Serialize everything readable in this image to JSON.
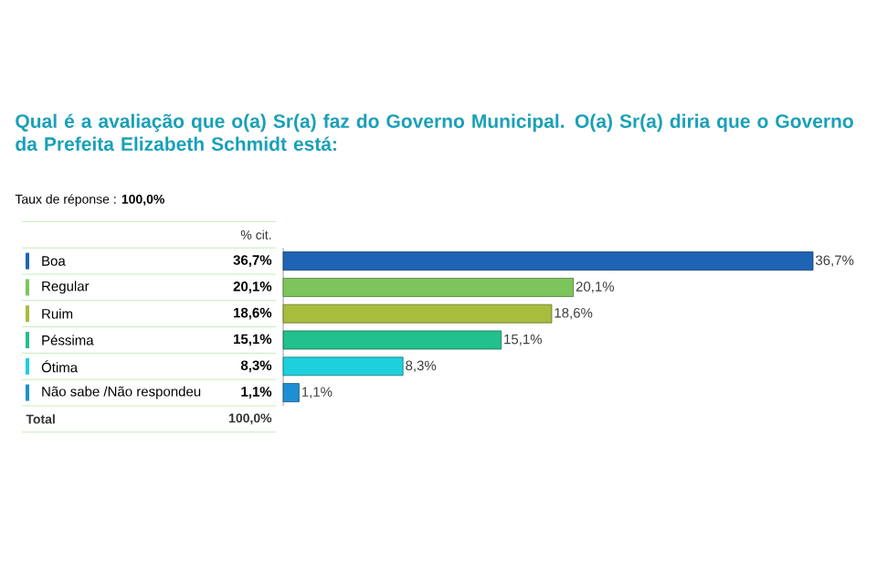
{
  "chart_data": {
    "type": "bar",
    "orientation": "horizontal",
    "title": "Qual é a avaliação que o(a) Sr(a) faz do Governo Municipal. O(a) Sr(a) diria que o Governo da Prefeita Elizabeth Schmidt está:",
    "subtitle": "Taux de réponse : **100,0%**",
    "categories": [
      "Boa",
      "Regular",
      "Ruim",
      "Péssima",
      "Ótima",
      "Não sabe /Não respondeu"
    ],
    "values": [
      36.7,
      20.1,
      18.6,
      15.1,
      8.3,
      1.1
    ],
    "value_labels": [
      "36,7%",
      "20,1%",
      "18,6%",
      "15,1%",
      "8,3%",
      "1,1%"
    ],
    "colors": [
      "#1f64b4",
      "#7cc55c",
      "#a8bc3e",
      "#22c08c",
      "#1ecfdc",
      "#1e8fd4"
    ],
    "annotations": [
      "% cit.",
      "Total",
      "100,0%"
    ]
  }
}
